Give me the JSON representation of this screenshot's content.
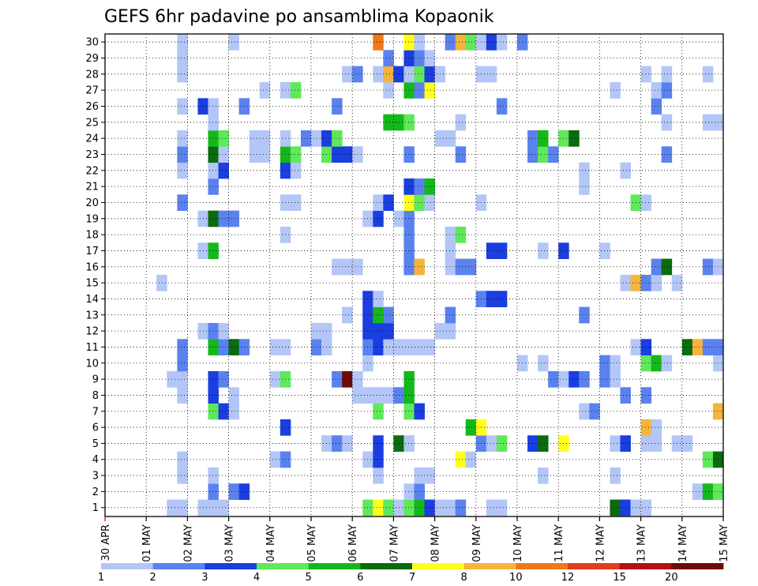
{
  "chart_data": {
    "type": "heatmap",
    "title": "GEFS 6hr padavine po ansamblima Kopaonik",
    "xlabel": "",
    "ylabel": "",
    "x_tick_labels": [
      "30 APR",
      "01 MAY",
      "02 MAY",
      "03 MAY",
      "04 MAY",
      "05 MAY",
      "06 MAY",
      "07 MAY",
      "08 MAY",
      "09 MAY",
      "10 MAY",
      "11 MAY",
      "12 MAY",
      "13 MAY",
      "14 MAY",
      "15 MAY"
    ],
    "x_unit": "6-hour step (4 steps per day)",
    "xlim": [
      0,
      60
    ],
    "y_tick_labels": [
      "1",
      "2",
      "3",
      "4",
      "5",
      "6",
      "7",
      "8",
      "9",
      "10",
      "11",
      "12",
      "13",
      "14",
      "15",
      "16",
      "17",
      "18",
      "19",
      "20",
      "21",
      "22",
      "23",
      "24",
      "25",
      "26",
      "27",
      "28",
      "29",
      "30"
    ],
    "ylim": [
      1,
      30
    ],
    "grid": true,
    "legend": {
      "placement": "bottom",
      "colors": [
        "#b3c6f7",
        "#5a82ee",
        "#1a3ee0",
        "#5fe85a",
        "#14b81a",
        "#0a6b0f",
        "#ffff1e",
        "#f5b43c",
        "#f07818",
        "#e03c1e",
        "#b40f14",
        "#6e0a0a"
      ],
      "labels": [
        "1",
        "2",
        "3",
        "4",
        "5",
        "6",
        "7",
        "8",
        "10",
        "12",
        "15",
        "20"
      ]
    },
    "cells": [
      [
        7,
        1,
        1
      ],
      [
        8,
        1,
        1
      ],
      [
        10,
        1,
        1
      ],
      [
        11,
        1,
        1
      ],
      [
        12,
        1,
        1
      ],
      [
        26,
        1,
        4
      ],
      [
        27,
        1,
        7
      ],
      [
        28,
        1,
        4
      ],
      [
        29,
        1,
        1
      ],
      [
        30,
        1,
        4
      ],
      [
        31,
        1,
        5
      ],
      [
        32,
        1,
        3
      ],
      [
        33,
        1,
        1
      ],
      [
        34,
        1,
        1
      ],
      [
        35,
        1,
        2
      ],
      [
        38,
        1,
        1
      ],
      [
        39,
        1,
        1
      ],
      [
        50,
        1,
        6
      ],
      [
        51,
        1,
        3
      ],
      [
        52,
        1,
        1
      ],
      [
        53,
        1,
        1
      ],
      [
        11,
        2,
        2
      ],
      [
        13,
        2,
        2
      ],
      [
        14,
        2,
        3
      ],
      [
        30,
        2,
        1
      ],
      [
        31,
        2,
        2
      ],
      [
        58,
        2,
        1
      ],
      [
        59,
        2,
        5
      ],
      [
        60,
        2,
        4
      ],
      [
        8,
        3,
        1
      ],
      [
        11,
        3,
        1
      ],
      [
        27,
        3,
        1
      ],
      [
        31,
        3,
        1
      ],
      [
        32,
        3,
        1
      ],
      [
        43,
        3,
        1
      ],
      [
        50,
        3,
        1
      ],
      [
        8,
        4,
        1
      ],
      [
        17,
        4,
        1
      ],
      [
        18,
        4,
        2
      ],
      [
        26,
        4,
        1
      ],
      [
        27,
        4,
        3
      ],
      [
        35,
        4,
        7
      ],
      [
        36,
        4,
        1
      ],
      [
        59,
        4,
        4
      ],
      [
        60,
        4,
        6
      ],
      [
        22,
        5,
        1
      ],
      [
        23,
        5,
        2
      ],
      [
        24,
        5,
        1
      ],
      [
        27,
        5,
        3
      ],
      [
        29,
        5,
        6
      ],
      [
        30,
        5,
        1
      ],
      [
        37,
        5,
        2
      ],
      [
        38,
        5,
        1
      ],
      [
        39,
        5,
        4
      ],
      [
        42,
        5,
        3
      ],
      [
        43,
        5,
        6
      ],
      [
        45,
        5,
        7
      ],
      [
        50,
        5,
        1
      ],
      [
        51,
        5,
        3
      ],
      [
        53,
        5,
        1
      ],
      [
        54,
        5,
        1
      ],
      [
        56,
        5,
        1
      ],
      [
        57,
        5,
        1
      ],
      [
        18,
        6,
        3
      ],
      [
        36,
        6,
        5
      ],
      [
        37,
        6,
        7
      ],
      [
        53,
        6,
        8
      ],
      [
        54,
        6,
        1
      ],
      [
        11,
        7,
        4
      ],
      [
        12,
        7,
        3
      ],
      [
        13,
        7,
        1
      ],
      [
        27,
        7,
        4
      ],
      [
        30,
        7,
        4
      ],
      [
        31,
        7,
        3
      ],
      [
        47,
        7,
        1
      ],
      [
        48,
        7,
        2
      ],
      [
        60,
        7,
        8
      ],
      [
        8,
        8,
        1
      ],
      [
        11,
        8,
        3
      ],
      [
        13,
        8,
        1
      ],
      [
        25,
        8,
        1
      ],
      [
        26,
        8,
        1
      ],
      [
        27,
        8,
        1
      ],
      [
        28,
        8,
        1
      ],
      [
        29,
        8,
        2
      ],
      [
        30,
        8,
        5
      ],
      [
        51,
        8,
        2
      ],
      [
        53,
        8,
        2
      ],
      [
        7,
        9,
        1
      ],
      [
        8,
        9,
        1
      ],
      [
        11,
        9,
        3
      ],
      [
        12,
        9,
        2
      ],
      [
        17,
        9,
        1
      ],
      [
        18,
        9,
        4
      ],
      [
        23,
        9,
        2
      ],
      [
        24,
        9,
        12
      ],
      [
        25,
        9,
        1
      ],
      [
        30,
        9,
        5
      ],
      [
        44,
        9,
        2
      ],
      [
        45,
        9,
        1
      ],
      [
        46,
        9,
        3
      ],
      [
        47,
        9,
        2
      ],
      [
        49,
        9,
        2
      ],
      [
        50,
        9,
        1
      ],
      [
        8,
        10,
        2
      ],
      [
        26,
        10,
        1
      ],
      [
        41,
        10,
        1
      ],
      [
        43,
        10,
        1
      ],
      [
        49,
        10,
        2
      ],
      [
        50,
        10,
        1
      ],
      [
        53,
        10,
        4
      ],
      [
        54,
        10,
        5
      ],
      [
        55,
        10,
        1
      ],
      [
        60,
        10,
        1
      ],
      [
        8,
        11,
        2
      ],
      [
        11,
        11,
        5
      ],
      [
        12,
        11,
        2
      ],
      [
        13,
        11,
        6
      ],
      [
        14,
        11,
        2
      ],
      [
        17,
        11,
        1
      ],
      [
        18,
        11,
        1
      ],
      [
        21,
        11,
        2
      ],
      [
        22,
        11,
        1
      ],
      [
        26,
        11,
        2
      ],
      [
        27,
        11,
        3
      ],
      [
        28,
        11,
        1
      ],
      [
        29,
        11,
        1
      ],
      [
        30,
        11,
        1
      ],
      [
        31,
        11,
        1
      ],
      [
        32,
        11,
        1
      ],
      [
        52,
        11,
        1
      ],
      [
        53,
        11,
        3
      ],
      [
        57,
        11,
        6
      ],
      [
        58,
        11,
        8
      ],
      [
        59,
        11,
        2
      ],
      [
        60,
        11,
        2
      ],
      [
        10,
        12,
        1
      ],
      [
        11,
        12,
        2
      ],
      [
        12,
        12,
        1
      ],
      [
        21,
        12,
        1
      ],
      [
        22,
        12,
        1
      ],
      [
        26,
        12,
        3
      ],
      [
        27,
        12,
        3
      ],
      [
        28,
        12,
        3
      ],
      [
        33,
        12,
        1
      ],
      [
        34,
        12,
        1
      ],
      [
        24,
        13,
        1
      ],
      [
        26,
        13,
        3
      ],
      [
        27,
        13,
        5
      ],
      [
        28,
        13,
        2
      ],
      [
        34,
        13,
        2
      ],
      [
        47,
        13,
        2
      ],
      [
        26,
        14,
        3
      ],
      [
        27,
        14,
        1
      ],
      [
        37,
        14,
        2
      ],
      [
        38,
        14,
        3
      ],
      [
        39,
        14,
        3
      ],
      [
        6,
        15,
        1
      ],
      [
        51,
        15,
        1
      ],
      [
        52,
        15,
        8
      ],
      [
        53,
        15,
        2
      ],
      [
        54,
        15,
        1
      ],
      [
        56,
        15,
        1
      ],
      [
        23,
        16,
        1
      ],
      [
        24,
        16,
        1
      ],
      [
        25,
        16,
        1
      ],
      [
        30,
        16,
        2
      ],
      [
        31,
        16,
        8
      ],
      [
        34,
        16,
        1
      ],
      [
        35,
        16,
        2
      ],
      [
        36,
        16,
        2
      ],
      [
        54,
        16,
        2
      ],
      [
        55,
        16,
        6
      ],
      [
        59,
        16,
        2
      ],
      [
        60,
        16,
        1
      ],
      [
        10,
        17,
        1
      ],
      [
        11,
        17,
        5
      ],
      [
        30,
        17,
        2
      ],
      [
        34,
        17,
        1
      ],
      [
        38,
        17,
        3
      ],
      [
        39,
        17,
        3
      ],
      [
        43,
        17,
        1
      ],
      [
        45,
        17,
        3
      ],
      [
        49,
        17,
        1
      ],
      [
        18,
        18,
        1
      ],
      [
        30,
        18,
        2
      ],
      [
        34,
        18,
        1
      ],
      [
        35,
        18,
        4
      ],
      [
        10,
        19,
        1
      ],
      [
        11,
        19,
        6
      ],
      [
        12,
        19,
        2
      ],
      [
        13,
        19,
        2
      ],
      [
        26,
        19,
        1
      ],
      [
        27,
        19,
        3
      ],
      [
        29,
        19,
        1
      ],
      [
        30,
        19,
        2
      ],
      [
        8,
        20,
        2
      ],
      [
        18,
        20,
        1
      ],
      [
        19,
        20,
        1
      ],
      [
        27,
        20,
        1
      ],
      [
        28,
        20,
        3
      ],
      [
        30,
        20,
        7
      ],
      [
        31,
        20,
        4
      ],
      [
        32,
        20,
        1
      ],
      [
        37,
        20,
        1
      ],
      [
        52,
        20,
        4
      ],
      [
        53,
        20,
        1
      ],
      [
        11,
        21,
        2
      ],
      [
        30,
        21,
        3
      ],
      [
        31,
        21,
        2
      ],
      [
        32,
        21,
        5
      ],
      [
        47,
        21,
        1
      ],
      [
        8,
        22,
        1
      ],
      [
        11,
        22,
        1
      ],
      [
        12,
        22,
        3
      ],
      [
        18,
        22,
        3
      ],
      [
        19,
        22,
        1
      ],
      [
        47,
        22,
        1
      ],
      [
        51,
        22,
        1
      ],
      [
        8,
        23,
        2
      ],
      [
        11,
        23,
        6
      ],
      [
        12,
        23,
        1
      ],
      [
        15,
        23,
        1
      ],
      [
        16,
        23,
        1
      ],
      [
        18,
        23,
        5
      ],
      [
        19,
        23,
        4
      ],
      [
        22,
        23,
        4
      ],
      [
        23,
        23,
        3
      ],
      [
        24,
        23,
        3
      ],
      [
        25,
        23,
        1
      ],
      [
        30,
        23,
        2
      ],
      [
        35,
        23,
        2
      ],
      [
        42,
        23,
        2
      ],
      [
        43,
        23,
        4
      ],
      [
        44,
        23,
        2
      ],
      [
        55,
        23,
        2
      ],
      [
        8,
        24,
        1
      ],
      [
        11,
        24,
        5
      ],
      [
        12,
        24,
        4
      ],
      [
        15,
        24,
        1
      ],
      [
        16,
        24,
        1
      ],
      [
        18,
        24,
        1
      ],
      [
        20,
        24,
        2
      ],
      [
        21,
        24,
        1
      ],
      [
        22,
        24,
        3
      ],
      [
        23,
        24,
        4
      ],
      [
        33,
        24,
        1
      ],
      [
        34,
        24,
        1
      ],
      [
        42,
        24,
        2
      ],
      [
        43,
        24,
        5
      ],
      [
        45,
        24,
        4
      ],
      [
        46,
        24,
        6
      ],
      [
        11,
        25,
        1
      ],
      [
        28,
        25,
        5
      ],
      [
        29,
        25,
        5
      ],
      [
        30,
        25,
        4
      ],
      [
        35,
        25,
        1
      ],
      [
        55,
        25,
        1
      ],
      [
        59,
        25,
        1
      ],
      [
        60,
        25,
        1
      ],
      [
        8,
        26,
        1
      ],
      [
        10,
        26,
        3
      ],
      [
        11,
        26,
        1
      ],
      [
        14,
        26,
        2
      ],
      [
        23,
        26,
        2
      ],
      [
        39,
        26,
        2
      ],
      [
        54,
        26,
        2
      ],
      [
        16,
        27,
        1
      ],
      [
        18,
        27,
        1
      ],
      [
        19,
        27,
        4
      ],
      [
        28,
        27,
        1
      ],
      [
        30,
        27,
        5
      ],
      [
        31,
        27,
        2
      ],
      [
        32,
        27,
        7
      ],
      [
        50,
        27,
        1
      ],
      [
        54,
        27,
        1
      ],
      [
        55,
        27,
        2
      ],
      [
        8,
        28,
        1
      ],
      [
        24,
        28,
        1
      ],
      [
        25,
        28,
        2
      ],
      [
        27,
        28,
        1
      ],
      [
        28,
        28,
        8
      ],
      [
        29,
        28,
        3
      ],
      [
        30,
        28,
        1
      ],
      [
        31,
        28,
        4
      ],
      [
        32,
        28,
        3
      ],
      [
        33,
        28,
        1
      ],
      [
        37,
        28,
        1
      ],
      [
        38,
        28,
        1
      ],
      [
        53,
        28,
        1
      ],
      [
        55,
        28,
        1
      ],
      [
        59,
        28,
        1
      ],
      [
        8,
        29,
        1
      ],
      [
        28,
        29,
        2
      ],
      [
        30,
        29,
        3
      ],
      [
        31,
        29,
        2
      ],
      [
        32,
        29,
        1
      ],
      [
        8,
        30,
        1
      ],
      [
        13,
        30,
        1
      ],
      [
        27,
        30,
        9
      ],
      [
        30,
        30,
        7
      ],
      [
        31,
        30,
        1
      ],
      [
        34,
        30,
        2
      ],
      [
        35,
        30,
        8
      ],
      [
        36,
        30,
        4
      ],
      [
        37,
        30,
        1
      ],
      [
        38,
        30,
        3
      ],
      [
        39,
        30,
        1
      ],
      [
        41,
        30,
        2
      ]
    ]
  }
}
